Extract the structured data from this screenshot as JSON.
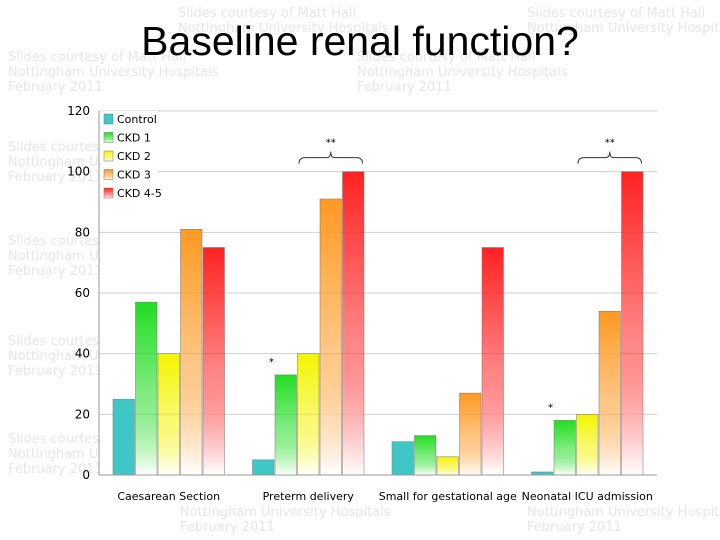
{
  "title": "Baseline renal function?",
  "watermark": {
    "line1": "Slides courtesy of Matt Hall",
    "line2": "Nottingham University Hospitals",
    "line3": "February 2011"
  },
  "colors": {
    "Control": "#3fc7c7",
    "CKD 1": "#22dd22",
    "CKD 2": "#f4f400",
    "CKD 3": "#ff9922",
    "CKD 4-5": "#ff2222"
  },
  "chart_data": {
    "type": "bar",
    "title": "",
    "xlabel": "",
    "ylabel": "",
    "ylim": [
      0,
      120
    ],
    "yticks": [
      "0",
      "20",
      "40",
      "60",
      "80",
      "100",
      "120"
    ],
    "categories": [
      "Caesarean Section",
      "Preterm delivery",
      "Small for gestational age",
      "Neonatal ICU admission"
    ],
    "series": [
      {
        "name": "Control",
        "values": [
          25,
          5,
          11,
          1
        ]
      },
      {
        "name": "CKD 1",
        "values": [
          57,
          33,
          13,
          18
        ]
      },
      {
        "name": "CKD 2",
        "values": [
          40,
          40,
          6,
          20
        ]
      },
      {
        "name": "CKD 3",
        "values": [
          81,
          91,
          27,
          54
        ]
      },
      {
        "name": "CKD 4-5",
        "values": [
          75,
          100,
          75,
          100
        ]
      }
    ],
    "grid": true,
    "legend_position": "top-left",
    "annotations": [
      {
        "text": "**",
        "category": 1,
        "from_series": 2,
        "to_series": 4
      },
      {
        "text": "**",
        "category": 3,
        "from_series": 2,
        "to_series": 4
      },
      {
        "text": "*",
        "category": 1,
        "series": 1
      },
      {
        "text": "*",
        "category": 3,
        "series": 1
      }
    ]
  }
}
